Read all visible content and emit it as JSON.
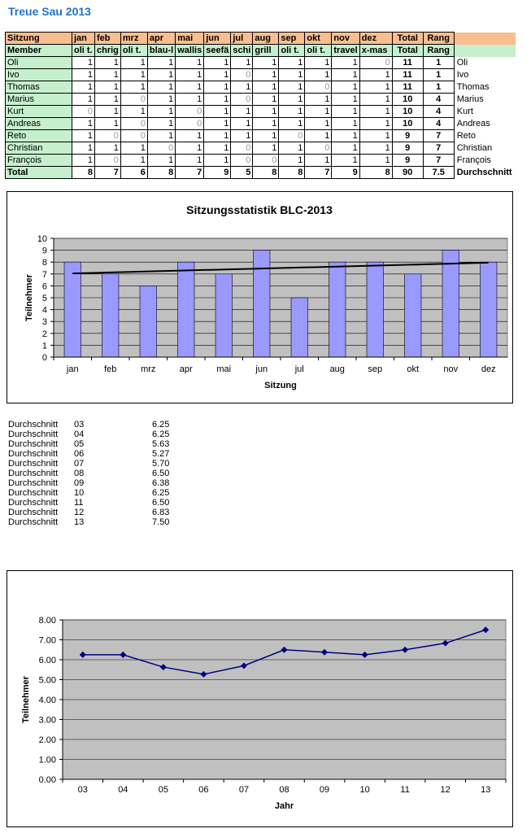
{
  "title": "Treue Sau 2013",
  "table": {
    "header1": [
      "Sitzung",
      "jan",
      "feb",
      "mrz",
      "apr",
      "mai",
      "jun",
      "jul",
      "aug",
      "sep",
      "okt",
      "nov",
      "dez",
      "Total",
      "Rang"
    ],
    "header2": [
      "Member",
      "oli t.",
      "chrig",
      "oli t.",
      "blau-l",
      "wallis",
      "seefä",
      "schi",
      "grill",
      "oli t.",
      "oli t.",
      "travel",
      "x-mas",
      "Total",
      "Rang"
    ],
    "rows": [
      {
        "name": "Oli",
        "values": [
          1,
          1,
          1,
          1,
          1,
          1,
          1,
          1,
          1,
          1,
          1,
          0
        ],
        "total": "11",
        "rank": "1"
      },
      {
        "name": "Ivo",
        "values": [
          1,
          1,
          1,
          1,
          1,
          1,
          0,
          1,
          1,
          1,
          1,
          1
        ],
        "total": "11",
        "rank": "1"
      },
      {
        "name": "Thomas",
        "values": [
          1,
          1,
          1,
          1,
          1,
          1,
          1,
          1,
          1,
          0,
          1,
          1
        ],
        "total": "11",
        "rank": "1"
      },
      {
        "name": "Marius",
        "values": [
          1,
          1,
          0,
          1,
          1,
          1,
          0,
          1,
          1,
          1,
          1,
          1
        ],
        "total": "10",
        "rank": "4"
      },
      {
        "name": "Kurt",
        "values": [
          0,
          1,
          1,
          1,
          0,
          1,
          1,
          1,
          1,
          1,
          1,
          1
        ],
        "total": "10",
        "rank": "4"
      },
      {
        "name": "Andreas",
        "values": [
          1,
          1,
          0,
          1,
          0,
          1,
          1,
          1,
          1,
          1,
          1,
          1
        ],
        "total": "10",
        "rank": "4"
      },
      {
        "name": "Reto",
        "values": [
          1,
          0,
          0,
          1,
          1,
          1,
          1,
          1,
          0,
          1,
          1,
          1
        ],
        "total": "9",
        "rank": "7"
      },
      {
        "name": "Christian",
        "values": [
          1,
          1,
          1,
          0,
          1,
          1,
          0,
          1,
          1,
          0,
          1,
          1
        ],
        "total": "9",
        "rank": "7"
      },
      {
        "name": "François",
        "values": [
          1,
          0,
          1,
          1,
          1,
          1,
          0,
          0,
          1,
          1,
          1,
          1
        ],
        "total": "9",
        "rank": "7"
      }
    ],
    "total_row": {
      "name": "Total",
      "values": [
        "8",
        "7",
        "6",
        "8",
        "7",
        "9",
        "5",
        "8",
        "8",
        "7",
        "9",
        "8"
      ],
      "total": "90",
      "average": "7.5",
      "average_label": "Durchschnitt"
    }
  },
  "averages": [
    {
      "label": "Durchschnitt",
      "year": "03",
      "value": "6.25"
    },
    {
      "label": "Durchschnitt",
      "year": "04",
      "value": "6.25"
    },
    {
      "label": "Durchschnitt",
      "year": "05",
      "value": "5.63"
    },
    {
      "label": "Durchschnitt",
      "year": "06",
      "value": "5.27"
    },
    {
      "label": "Durchschnitt",
      "year": "07",
      "value": "5.70"
    },
    {
      "label": "Durchschnitt",
      "year": "08",
      "value": "6.50"
    },
    {
      "label": "Durchschnitt",
      "year": "09",
      "value": "6.38"
    },
    {
      "label": "Durchschnitt",
      "year": "10",
      "value": "6.25"
    },
    {
      "label": "Durchschnitt",
      "year": "11",
      "value": "6.50"
    },
    {
      "label": "Durchschnitt",
      "year": "12",
      "value": "6.83"
    },
    {
      "label": "Durchschnitt",
      "year": "13",
      "value": "7.50"
    }
  ],
  "chart_data": [
    {
      "type": "bar",
      "title": "Sitzungsstatistik BLC-2013",
      "xlabel": "Sitzung",
      "ylabel": "Teilnehmer",
      "categories": [
        "jan",
        "feb",
        "mrz",
        "apr",
        "mai",
        "jun",
        "jul",
        "aug",
        "sep",
        "okt",
        "nov",
        "dez"
      ],
      "values": [
        8,
        7,
        6,
        8,
        7,
        9,
        5,
        8,
        8,
        7,
        9,
        8
      ],
      "ylim": [
        0,
        10
      ],
      "yticks": [
        "0",
        "1",
        "2",
        "3",
        "4",
        "5",
        "6",
        "7",
        "8",
        "9",
        "10"
      ],
      "trendline": {
        "start": 7.05,
        "end": 7.95
      },
      "grid": true,
      "colors": {
        "bar": "#9999ff",
        "plot_bg": "#c0c0c0",
        "trend": "#000000"
      }
    },
    {
      "type": "line",
      "title": "",
      "xlabel": "Jahr",
      "ylabel": "Teilnehmer",
      "categories": [
        "03",
        "04",
        "05",
        "06",
        "07",
        "08",
        "09",
        "10",
        "11",
        "12",
        "13"
      ],
      "values": [
        6.25,
        6.25,
        5.63,
        5.27,
        5.7,
        6.5,
        6.38,
        6.25,
        6.5,
        6.83,
        7.5
      ],
      "ylim": [
        0,
        8
      ],
      "yticks": [
        "0.00",
        "1.00",
        "2.00",
        "3.00",
        "4.00",
        "5.00",
        "6.00",
        "7.00",
        "8.00"
      ],
      "grid": true,
      "colors": {
        "line": "#000080",
        "plot_bg": "#c0c0c0"
      }
    }
  ]
}
